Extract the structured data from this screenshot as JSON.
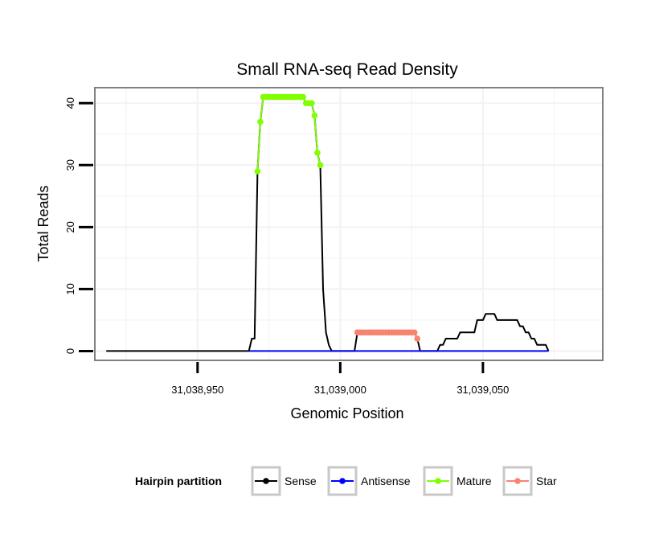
{
  "chart_data": {
    "type": "line",
    "title": "Small RNA-seq Read Density",
    "xlabel": "Genomic Position",
    "ylabel": "Total Reads",
    "xlim": [
      31038914,
      31039092
    ],
    "ylim": [
      -1.5,
      42.5
    ],
    "x_ticks": [
      31038950,
      31039000,
      31039050
    ],
    "x_tick_labels": [
      "31,038,950",
      "31,039,000",
      "31,039,050"
    ],
    "y_ticks": [
      0,
      10,
      20,
      30,
      40
    ],
    "y_tick_labels": [
      "0",
      "10",
      "20",
      "30",
      "40"
    ],
    "grid": true,
    "legend_position": "bottom",
    "legend_title": "Hairpin partition",
    "series": [
      {
        "name": "Sense",
        "color": "#000000",
        "markers": false,
        "points": [
          [
            31038918,
            0
          ],
          [
            31038968,
            0
          ],
          [
            31038969,
            2
          ],
          [
            31038970,
            2
          ],
          [
            31038971,
            29
          ],
          [
            31038972,
            37
          ],
          [
            31038973,
            41
          ],
          [
            31038987,
            41
          ],
          [
            31038988,
            40
          ],
          [
            31038990,
            40
          ],
          [
            31038991,
            38
          ],
          [
            31038992,
            32
          ],
          [
            31038993,
            30
          ],
          [
            31038994,
            10
          ],
          [
            31038995,
            3
          ],
          [
            31038996,
            1
          ],
          [
            31038997,
            0
          ],
          [
            31039005,
            0
          ],
          [
            31039006,
            3
          ],
          [
            31039026,
            3
          ],
          [
            31039027,
            2
          ],
          [
            31039028,
            0
          ],
          [
            31039034,
            0
          ],
          [
            31039035,
            1
          ],
          [
            31039036,
            1
          ],
          [
            31039037,
            2
          ],
          [
            31039041,
            2
          ],
          [
            31039042,
            3
          ],
          [
            31039047,
            3
          ],
          [
            31039048,
            5
          ],
          [
            31039050,
            5
          ],
          [
            31039051,
            6
          ],
          [
            31039054,
            6
          ],
          [
            31039055,
            5
          ],
          [
            31039062,
            5
          ],
          [
            31039063,
            4
          ],
          [
            31039064,
            4
          ],
          [
            31039065,
            3
          ],
          [
            31039066,
            3
          ],
          [
            31039067,
            2
          ],
          [
            31039068,
            2
          ],
          [
            31039069,
            1
          ],
          [
            31039072,
            1
          ],
          [
            31039073,
            0
          ]
        ]
      },
      {
        "name": "Antisense",
        "color": "#0000ff",
        "markers": false,
        "points": [
          [
            31038968,
            0
          ],
          [
            31039073,
            0
          ]
        ]
      },
      {
        "name": "Mature",
        "color": "#80ff00",
        "markers": true,
        "points": [
          [
            31038971,
            29
          ],
          [
            31038972,
            37
          ],
          [
            31038973,
            41
          ],
          [
            31038974,
            41
          ],
          [
            31038975,
            41
          ],
          [
            31038976,
            41
          ],
          [
            31038977,
            41
          ],
          [
            31038978,
            41
          ],
          [
            31038979,
            41
          ],
          [
            31038980,
            41
          ],
          [
            31038981,
            41
          ],
          [
            31038982,
            41
          ],
          [
            31038983,
            41
          ],
          [
            31038984,
            41
          ],
          [
            31038985,
            41
          ],
          [
            31038986,
            41
          ],
          [
            31038987,
            41
          ],
          [
            31038988,
            40
          ],
          [
            31038989,
            40
          ],
          [
            31038990,
            40
          ],
          [
            31038991,
            38
          ],
          [
            31038992,
            32
          ],
          [
            31038993,
            30
          ]
        ]
      },
      {
        "name": "Star",
        "color": "#f8836f",
        "markers": true,
        "points": [
          [
            31039006,
            3
          ],
          [
            31039007,
            3
          ],
          [
            31039008,
            3
          ],
          [
            31039009,
            3
          ],
          [
            31039010,
            3
          ],
          [
            31039011,
            3
          ],
          [
            31039012,
            3
          ],
          [
            31039013,
            3
          ],
          [
            31039014,
            3
          ],
          [
            31039015,
            3
          ],
          [
            31039016,
            3
          ],
          [
            31039017,
            3
          ],
          [
            31039018,
            3
          ],
          [
            31039019,
            3
          ],
          [
            31039020,
            3
          ],
          [
            31039021,
            3
          ],
          [
            31039022,
            3
          ],
          [
            31039023,
            3
          ],
          [
            31039024,
            3
          ],
          [
            31039025,
            3
          ],
          [
            31039026,
            3
          ],
          [
            31039027,
            2
          ]
        ]
      }
    ]
  }
}
